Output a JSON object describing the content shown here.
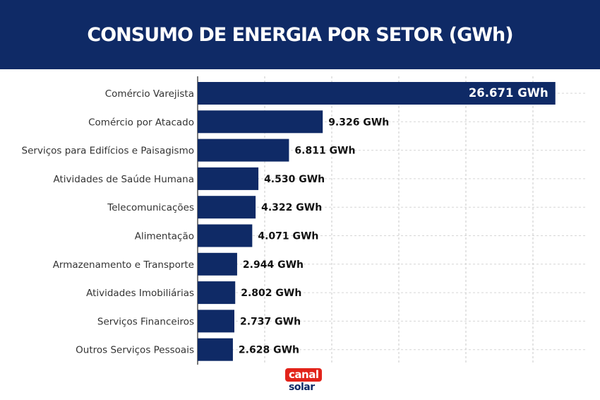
{
  "header": {
    "title": "CONSUMO DE ENERGIA POR SETOR (GWh)"
  },
  "logo": {
    "line1": "canal",
    "line2": "solar"
  },
  "colors": {
    "header_bg": "#0f2a66",
    "bar": "#0f2a66",
    "logo_red": "#e2231a"
  },
  "chart_data": {
    "type": "bar",
    "orientation": "horizontal",
    "title": "CONSUMO DE ENERGIA POR SETOR (GWh)",
    "unit": "GWh",
    "categories": [
      "Comércio Varejista",
      "Comércio por Atacado",
      "Serviços para Edifícios e Paisagismo",
      "Atividades de Saúde Humana",
      "Telecomunicações",
      "Alimentação",
      "Armazenamento e Transporte",
      "Atividades Imobiliárias",
      "Serviços Financeiros",
      "Outros Serviços Pessoais"
    ],
    "values": [
      26671,
      9326,
      6811,
      4530,
      4322,
      4071,
      2944,
      2802,
      2737,
      2628
    ],
    "labels": [
      "26.671 GWh",
      "9.326 GWh",
      "6.811 GWh",
      "4.530 GWh",
      "4.322 GWh",
      "4.071 GWh",
      "2.944 GWh",
      "2.802 GWh",
      "2.737 GWh",
      "2.628 GWh"
    ],
    "xlim": [
      0,
      28000
    ],
    "grid": true,
    "xaxis_ticks_visible": false
  }
}
